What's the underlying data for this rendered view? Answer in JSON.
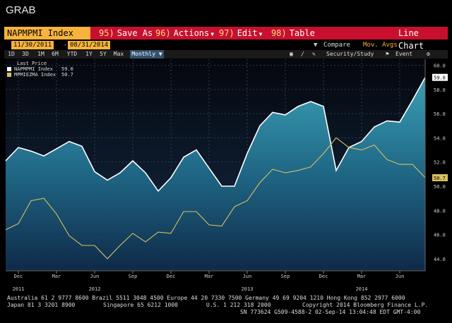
{
  "app": {
    "title": "GRAB"
  },
  "toolbar": {
    "ticker": "NAPMPMI Index",
    "items": [
      {
        "num": "95)",
        "label": "Save As"
      },
      {
        "num": "96)",
        "label": "Actions"
      },
      {
        "num": "97)",
        "label": "Edit"
      },
      {
        "num": "98)",
        "label": "Table"
      }
    ],
    "chart_type": "Line Chart"
  },
  "date_range": {
    "start": "11/30/2011",
    "end": "08/31/2014"
  },
  "options": {
    "compare": "Compare",
    "mov_avgs": "Mov. Avgs"
  },
  "periods": [
    "1D",
    "3D",
    "1M",
    "6M",
    "YTD",
    "1Y",
    "5Y",
    "Max"
  ],
  "frequency": "Monthly",
  "tools": {
    "security_study": "Security/Study",
    "event": "Event"
  },
  "legend": {
    "header": "Last Price",
    "items": [
      {
        "name": "NAPMPMI Index",
        "value": "59.0",
        "color": "#ffffff"
      },
      {
        "name": "MPMIEZMA Index",
        "value": "50.7",
        "color": "#d8c060"
      }
    ]
  },
  "chart_data": {
    "type": "line",
    "x": [
      "2011-11",
      "2011-12",
      "2012-01",
      "2012-02",
      "2012-03",
      "2012-04",
      "2012-05",
      "2012-06",
      "2012-07",
      "2012-08",
      "2012-09",
      "2012-10",
      "2012-11",
      "2012-12",
      "2013-01",
      "2013-02",
      "2013-03",
      "2013-04",
      "2013-05",
      "2013-06",
      "2013-07",
      "2013-08",
      "2013-09",
      "2013-10",
      "2013-11",
      "2013-12",
      "2014-01",
      "2014-02",
      "2014-03",
      "2014-04",
      "2014-05",
      "2014-06",
      "2014-07",
      "2014-08"
    ],
    "x_tick_labels": [
      {
        "x": "2011-12",
        "label": "Dec",
        "year": "2011"
      },
      {
        "x": "2012-03",
        "label": "Mar"
      },
      {
        "x": "2012-06",
        "label": "Jun",
        "year": "2012"
      },
      {
        "x": "2012-09",
        "label": "Sep"
      },
      {
        "x": "2012-12",
        "label": "Dec"
      },
      {
        "x": "2013-03",
        "label": "Mar"
      },
      {
        "x": "2013-06",
        "label": "Jun",
        "year": "2013"
      },
      {
        "x": "2013-09",
        "label": "Sep"
      },
      {
        "x": "2013-12",
        "label": "Dec"
      },
      {
        "x": "2014-03",
        "label": "Mar",
        "year": "2014"
      },
      {
        "x": "2014-06",
        "label": "Jun"
      }
    ],
    "series": [
      {
        "name": "NAPMPMI Index",
        "color": "#ffffff",
        "area": true,
        "values": [
          52.1,
          53.2,
          52.9,
          52.5,
          53.1,
          53.7,
          53.3,
          51.2,
          50.5,
          51.1,
          52.1,
          51.1,
          49.6,
          50.7,
          52.4,
          53.0,
          51.5,
          50.0,
          50.0,
          52.7,
          55.0,
          56.1,
          55.9,
          56.6,
          57.0,
          56.6,
          51.3,
          53.2,
          53.7,
          54.9,
          55.4,
          55.3,
          57.1,
          59.0
        ],
        "last_label": "59.0"
      },
      {
        "name": "MPMIEZMA Index",
        "color": "#d8c060",
        "values": [
          46.4,
          46.9,
          48.8,
          49.0,
          47.7,
          45.9,
          45.1,
          45.1,
          44.0,
          45.1,
          46.1,
          45.4,
          46.2,
          46.1,
          47.9,
          47.9,
          46.8,
          46.7,
          48.3,
          48.8,
          50.3,
          51.4,
          51.1,
          51.3,
          51.6,
          52.7,
          54.0,
          53.2,
          53.0,
          53.4,
          52.2,
          51.8,
          51.8,
          50.7
        ],
        "last_label": "50.7"
      }
    ],
    "y_ticks": [
      "44.0",
      "46.0",
      "48.0",
      "50.0",
      "52.0",
      "54.0",
      "56.0",
      "58.0",
      "60.0"
    ],
    "ylim": [
      43.0,
      60.5
    ],
    "grid": true
  },
  "footer": {
    "line1": "Australia 61 2 9777 8600 Brazil 5511 3048 4500 Europe 44 20 7330 7500 Germany 49 69 9204 1210 Hong Kong 852 2977 6000",
    "line2a": "Japan 81 3 3201 8900",
    "line2b": "Singapore 65 6212 1000",
    "line2c": "U.S. 1 212 318 2000",
    "line2d": "Copyright 2014 Bloomberg Finance L.P.",
    "line3": "SN 773624 G509-4588-2 02-Sep-14 13:04:48 EDT  GMT-4:00"
  }
}
